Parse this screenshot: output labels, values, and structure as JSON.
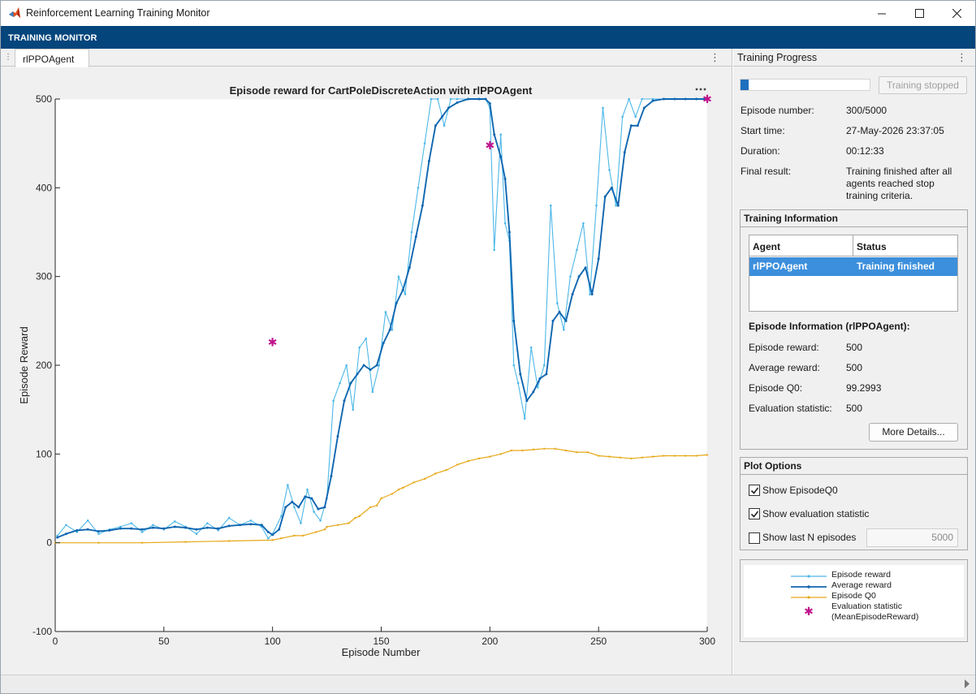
{
  "window": {
    "title": "Reinforcement Learning Training Monitor"
  },
  "ribbon": {
    "tab": "TRAINING MONITOR"
  },
  "doc_tab": {
    "label": "rlPPOAgent"
  },
  "progress_panel": {
    "title": "Training Progress",
    "progress_fraction": 0.06,
    "stop_button": "Training stopped",
    "fields": [
      {
        "key": "Episode number:",
        "value": "300/5000"
      },
      {
        "key": "Start time:",
        "value": "27-May-2026 23:37:05"
      },
      {
        "key": "Duration:",
        "value": "00:12:33"
      },
      {
        "key": "Final result:",
        "value": "Training finished after all agents reached stop training criteria."
      }
    ]
  },
  "training_info": {
    "title": "Training Information",
    "columns": [
      "Agent",
      "Status"
    ],
    "rows": [
      {
        "agent": "rlPPOAgent",
        "status": "Training finished"
      }
    ],
    "episode_info_title": "Episode Information (rlPPOAgent):",
    "episode_info": [
      {
        "key": "Episode reward:",
        "value": "500"
      },
      {
        "key": "Average reward:",
        "value": "500"
      },
      {
        "key": "Episode Q0:",
        "value": "99.2993"
      },
      {
        "key": "Evaluation statistic:",
        "value": "500"
      }
    ],
    "more_button": "More Details..."
  },
  "plot_options": {
    "title": "Plot Options",
    "show_q0": {
      "label": "Show EpisodeQ0",
      "checked": true
    },
    "show_eval": {
      "label": "Show evaluation statistic",
      "checked": true
    },
    "show_lastn": {
      "label": "Show last N episodes",
      "checked": false
    },
    "lastn_value": "5000"
  },
  "colors": {
    "episode_reward": "#4db8e8",
    "average_reward": "#0f66b0",
    "episode_q0": "#e6a817",
    "evaluation": "#c0148c",
    "ribbon": "#04457c"
  },
  "chart_data": {
    "type": "line",
    "title": "Episode reward for CartPoleDiscreteAction with rlPPOAgent",
    "xlabel": "Episode Number",
    "ylabel": "Episode Reward",
    "xlim": [
      0,
      300
    ],
    "ylim": [
      -100,
      500
    ],
    "xticks": [
      "0",
      "50",
      "100",
      "150",
      "200",
      "250",
      "300"
    ],
    "yticks": [
      "-100",
      "0",
      "100",
      "200",
      "300",
      "400",
      "500"
    ],
    "legend": [
      "Episode reward",
      "Average reward",
      "Episode Q0",
      "Evaluation statistic (MeanEpisodeReward)"
    ],
    "series": [
      {
        "name": "Episode reward",
        "x": [
          1,
          5,
          10,
          15,
          20,
          25,
          30,
          35,
          40,
          45,
          50,
          55,
          60,
          65,
          70,
          75,
          80,
          85,
          90,
          95,
          98,
          100,
          104,
          107,
          110,
          113,
          116,
          119,
          122,
          125,
          128,
          131,
          134,
          137,
          140,
          143,
          146,
          149,
          152,
          155,
          158,
          161,
          164,
          167,
          170,
          173,
          176,
          179,
          182,
          185,
          190,
          195,
          198,
          200,
          202,
          205,
          207,
          209,
          211,
          213,
          216,
          219,
          222,
          225,
          228,
          231,
          234,
          237,
          240,
          243,
          246,
          249,
          252,
          255,
          258,
          261,
          264,
          267,
          270,
          275,
          280,
          285,
          290,
          295,
          300
        ],
        "y": [
          8,
          20,
          12,
          25,
          10,
          15,
          18,
          22,
          12,
          20,
          15,
          24,
          18,
          10,
          22,
          14,
          28,
          20,
          25,
          18,
          5,
          10,
          30,
          65,
          40,
          22,
          60,
          35,
          25,
          50,
          160,
          180,
          200,
          150,
          220,
          230,
          170,
          200,
          260,
          240,
          300,
          280,
          350,
          400,
          450,
          500,
          500,
          470,
          500,
          500,
          500,
          500,
          500,
          490,
          330,
          460,
          360,
          340,
          200,
          180,
          140,
          220,
          175,
          200,
          380,
          270,
          240,
          300,
          330,
          360,
          280,
          380,
          490,
          420,
          380,
          480,
          500,
          480,
          500,
          500,
          500,
          500,
          500,
          500,
          500
        ]
      },
      {
        "name": "Average reward",
        "x": [
          1,
          5,
          10,
          15,
          20,
          25,
          30,
          35,
          40,
          45,
          50,
          55,
          60,
          65,
          70,
          75,
          80,
          85,
          90,
          95,
          98,
          100,
          103,
          106,
          109,
          112,
          115,
          118,
          121,
          124,
          127,
          130,
          133,
          136,
          139,
          142,
          145,
          148,
          151,
          154,
          157,
          160,
          163,
          166,
          169,
          172,
          175,
          178,
          181,
          185,
          190,
          195,
          198,
          200,
          202,
          205,
          207,
          209,
          211,
          214,
          217,
          220,
          223,
          226,
          229,
          232,
          235,
          238,
          241,
          244,
          247,
          250,
          253,
          256,
          259,
          262,
          265,
          268,
          271,
          275,
          280,
          285,
          290,
          295,
          300
        ],
        "y": [
          6,
          10,
          14,
          15,
          13,
          14,
          16,
          16,
          15,
          17,
          16,
          18,
          17,
          15,
          17,
          16,
          19,
          20,
          21,
          20,
          12,
          9,
          15,
          40,
          46,
          40,
          52,
          50,
          38,
          40,
          75,
          120,
          160,
          180,
          190,
          200,
          195,
          200,
          225,
          240,
          270,
          285,
          310,
          345,
          380,
          430,
          470,
          480,
          490,
          496,
          500,
          500,
          500,
          495,
          460,
          435,
          410,
          350,
          250,
          190,
          160,
          170,
          185,
          190,
          250,
          260,
          250,
          280,
          300,
          310,
          280,
          320,
          390,
          400,
          380,
          440,
          470,
          470,
          490,
          498,
          500,
          500,
          500,
          500,
          500
        ]
      },
      {
        "name": "Episode Q0",
        "x": [
          0,
          20,
          40,
          60,
          80,
          100,
          104,
          110,
          114,
          120,
          124,
          125,
          130,
          135,
          138,
          140,
          145,
          148,
          150,
          155,
          158,
          160,
          165,
          170,
          175,
          180,
          185,
          190,
          195,
          200,
          205,
          210,
          215,
          220,
          225,
          230,
          235,
          240,
          245,
          250,
          255,
          260,
          265,
          270,
          275,
          280,
          285,
          290,
          295,
          300
        ],
        "y": [
          0,
          0,
          0,
          1,
          2,
          3,
          5,
          8,
          8,
          12,
          15,
          18,
          20,
          22,
          28,
          30,
          40,
          42,
          50,
          55,
          60,
          62,
          68,
          72,
          78,
          82,
          88,
          92,
          95,
          97,
          100,
          104,
          104,
          105,
          106,
          106,
          104,
          102,
          102,
          98,
          97,
          96,
          95,
          96,
          97,
          98,
          98,
          98,
          98,
          99
        ]
      },
      {
        "name": "Evaluation statistic (MeanEpisodeReward)",
        "x": [
          100,
          200,
          300
        ],
        "y": [
          226,
          448,
          500
        ]
      }
    ]
  }
}
